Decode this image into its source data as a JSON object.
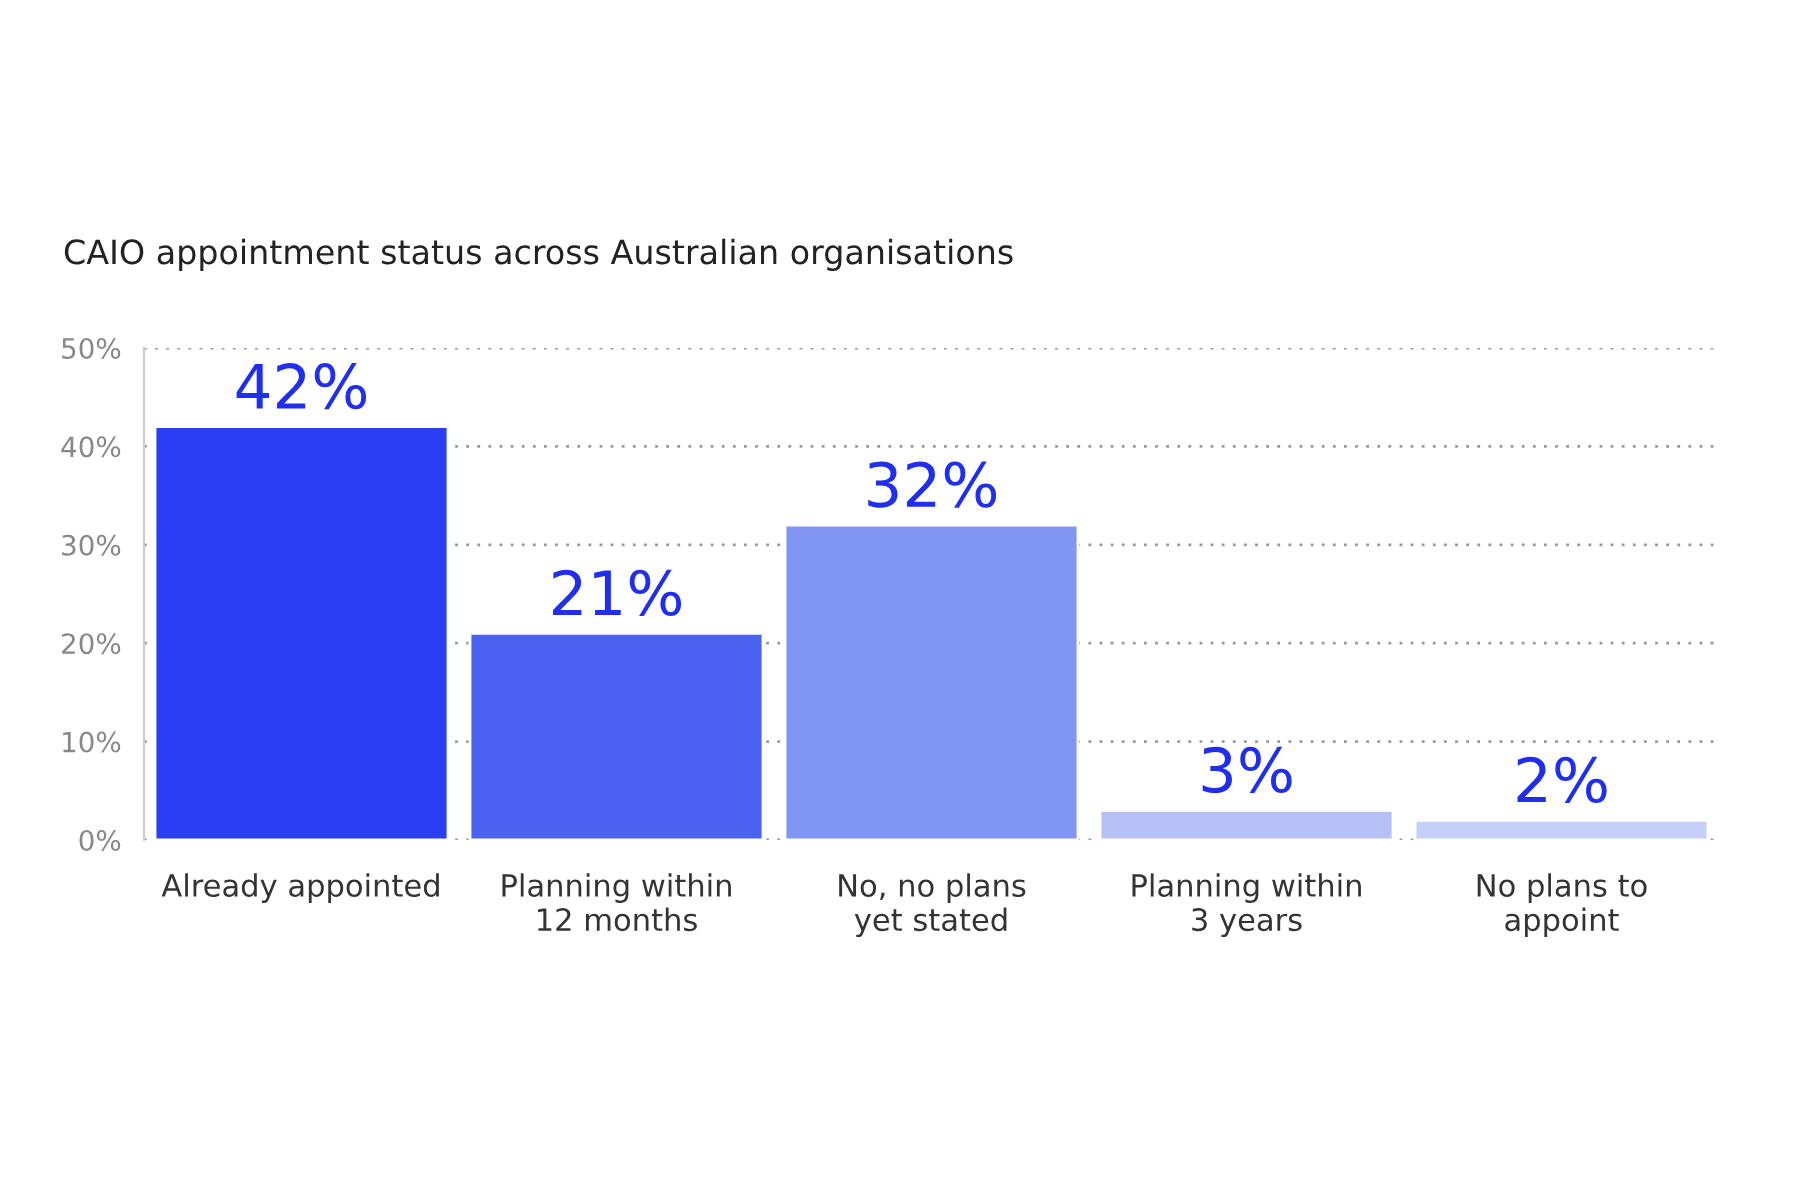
{
  "chart_data": {
    "type": "bar",
    "title": "CAIO appointment status across Australian organisations",
    "categories": [
      "Already appointed",
      "Planning within\n12 months",
      "No, no plans\nyet stated",
      "Planning within\n3 years",
      "No plans to\nappoint"
    ],
    "values": [
      42,
      21,
      32,
      3,
      2
    ],
    "colors": [
      "#2a3ff2",
      "#4a62f0",
      "#8196f2",
      "#b4c0f6",
      "#c6cff8"
    ],
    "value_labels": [
      "42%",
      "21%",
      "32%",
      "3%",
      "2%"
    ],
    "ylim": [
      0,
      50
    ],
    "yticks": [
      {
        "value": 0,
        "label": "0%"
      },
      {
        "value": 10,
        "label": "10%"
      },
      {
        "value": 20,
        "label": "20%"
      },
      {
        "value": 30,
        "label": "30%"
      },
      {
        "value": 40,
        "label": "40%"
      },
      {
        "value": 50,
        "label": "50%"
      }
    ],
    "grid": "y",
    "legend": false
  }
}
